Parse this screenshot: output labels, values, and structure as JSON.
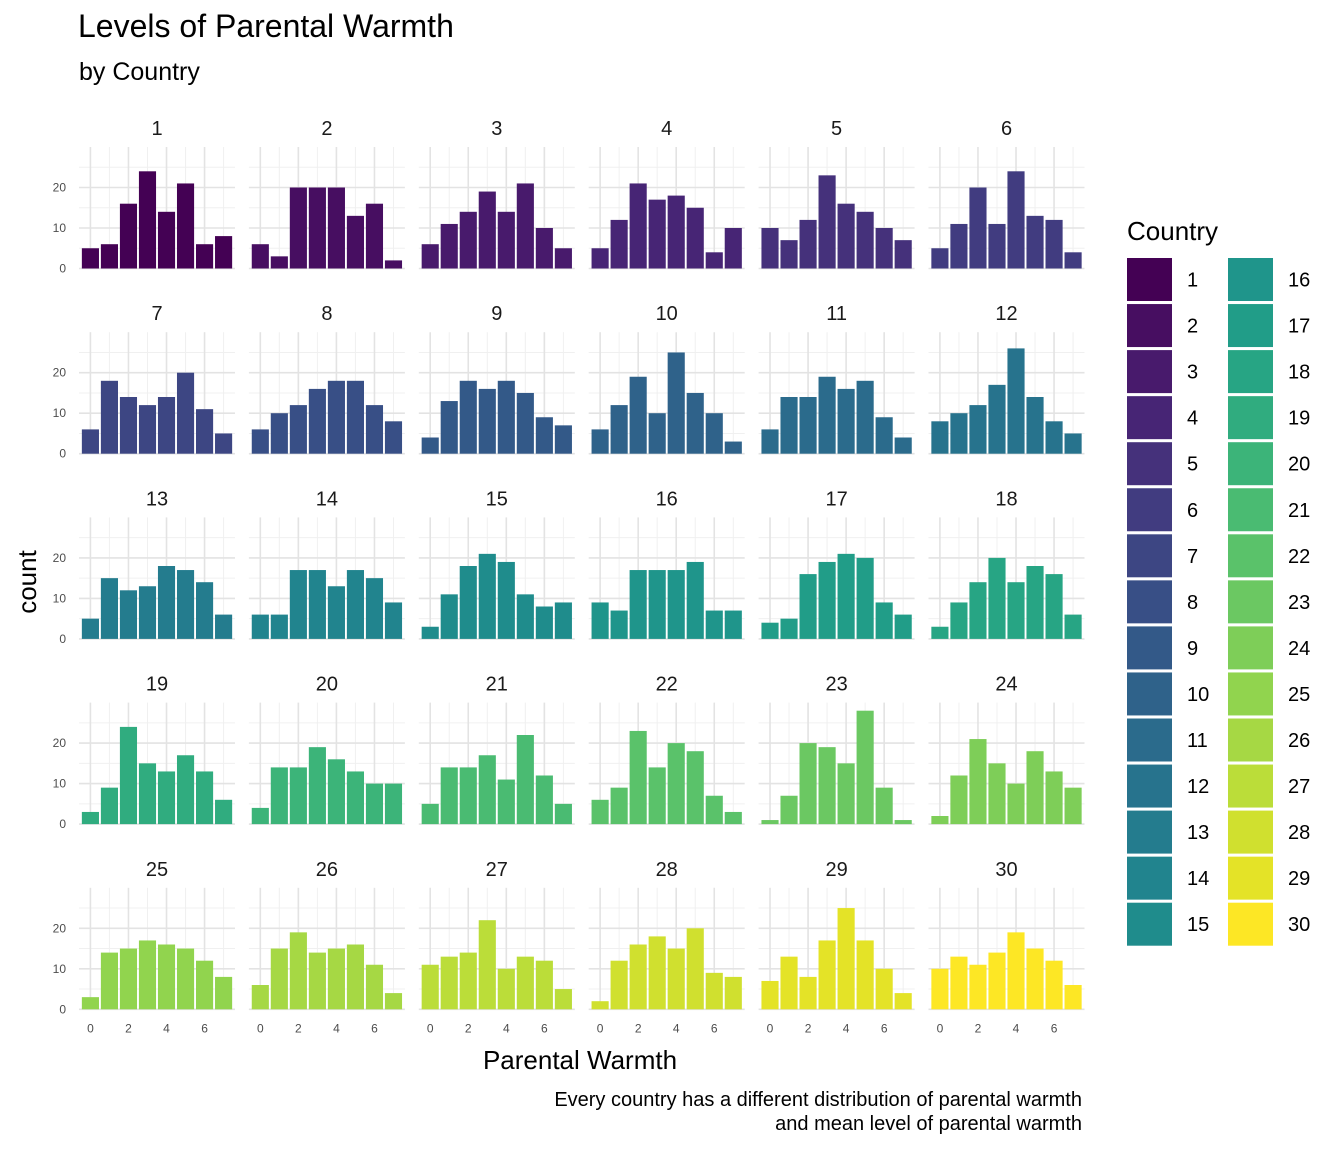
{
  "chart_data": {
    "type": "bar",
    "title": "Levels of Parental Warmth",
    "subtitle": "by Country",
    "xlabel": "Parental Warmth",
    "ylabel": "count",
    "caption": "Every country has a different distribution of parental warmth\nand mean level of parental warmth",
    "legend_title": "Country",
    "legend_position": "right",
    "grid": true,
    "x": [
      0,
      1,
      2,
      3,
      4,
      5,
      6,
      7
    ],
    "xlim": [
      -0.6,
      7.6
    ],
    "ylim": [
      0,
      30
    ],
    "x_ticks": [
      "0",
      "2",
      "4",
      "6"
    ],
    "y_ticks": [
      "0",
      "10",
      "20"
    ],
    "facets": [
      {
        "label": "1",
        "values": [
          5,
          6,
          16,
          24,
          14,
          21,
          6,
          8
        ],
        "color": "#440154"
      },
      {
        "label": "2",
        "values": [
          6,
          3,
          20,
          20,
          20,
          13,
          16,
          2
        ],
        "color": "#470E61"
      },
      {
        "label": "3",
        "values": [
          6,
          11,
          14,
          19,
          14,
          21,
          10,
          5
        ],
        "color": "#481A6C"
      },
      {
        "label": "4",
        "values": [
          5,
          12,
          21,
          17,
          18,
          15,
          4,
          10
        ],
        "color": "#472575"
      },
      {
        "label": "5",
        "values": [
          10,
          7,
          12,
          23,
          16,
          14,
          10,
          7
        ],
        "color": "#45317B"
      },
      {
        "label": "6",
        "values": [
          5,
          11,
          20,
          11,
          24,
          13,
          12,
          4
        ],
        "color": "#413C80"
      },
      {
        "label": "7",
        "values": [
          6,
          18,
          14,
          12,
          14,
          20,
          11,
          5
        ],
        "color": "#3D4683"
      },
      {
        "label": "8",
        "values": [
          6,
          10,
          12,
          16,
          18,
          18,
          12,
          8
        ],
        "color": "#384F86"
      },
      {
        "label": "9",
        "values": [
          4,
          13,
          18,
          16,
          18,
          15,
          9,
          7
        ],
        "color": "#335988"
      },
      {
        "label": "10",
        "values": [
          6,
          12,
          19,
          10,
          25,
          15,
          10,
          3
        ],
        "color": "#2F628A"
      },
      {
        "label": "11",
        "values": [
          6,
          14,
          14,
          19,
          16,
          18,
          9,
          4
        ],
        "color": "#2B6B8C"
      },
      {
        "label": "12",
        "values": [
          8,
          10,
          12,
          17,
          26,
          14,
          8,
          5
        ],
        "color": "#27738D"
      },
      {
        "label": "13",
        "values": [
          5,
          15,
          12,
          13,
          18,
          17,
          14,
          6
        ],
        "color": "#247C8E"
      },
      {
        "label": "14",
        "values": [
          6,
          6,
          17,
          17,
          13,
          17,
          15,
          9
        ],
        "color": "#21848E"
      },
      {
        "label": "15",
        "values": [
          3,
          11,
          18,
          21,
          19,
          11,
          8,
          9
        ],
        "color": "#1F8C8C"
      },
      {
        "label": "16",
        "values": [
          9,
          7,
          17,
          17,
          17,
          19,
          7,
          7
        ],
        "color": "#1F958B"
      },
      {
        "label": "17",
        "values": [
          4,
          5,
          16,
          19,
          21,
          20,
          9,
          6
        ],
        "color": "#219D88"
      },
      {
        "label": "18",
        "values": [
          3,
          9,
          14,
          20,
          14,
          18,
          16,
          6
        ],
        "color": "#27A584"
      },
      {
        "label": "19",
        "values": [
          3,
          9,
          24,
          15,
          13,
          17,
          13,
          6
        ],
        "color": "#30AC7F"
      },
      {
        "label": "20",
        "values": [
          4,
          14,
          14,
          19,
          16,
          13,
          10,
          10
        ],
        "color": "#3CB479"
      },
      {
        "label": "21",
        "values": [
          5,
          14,
          14,
          17,
          11,
          22,
          12,
          5
        ],
        "color": "#4ABB72"
      },
      {
        "label": "22",
        "values": [
          6,
          9,
          23,
          14,
          20,
          18,
          7,
          3
        ],
        "color": "#5AC26A"
      },
      {
        "label": "23",
        "values": [
          1,
          7,
          20,
          19,
          15,
          28,
          9,
          1
        ],
        "color": "#6BC862"
      },
      {
        "label": "24",
        "values": [
          2,
          12,
          21,
          15,
          10,
          18,
          13,
          9
        ],
        "color": "#7ECE58"
      },
      {
        "label": "25",
        "values": [
          3,
          14,
          15,
          17,
          16,
          15,
          12,
          8
        ],
        "color": "#91D44E"
      },
      {
        "label": "26",
        "values": [
          6,
          15,
          19,
          14,
          15,
          16,
          11,
          4
        ],
        "color": "#A6D844"
      },
      {
        "label": "27",
        "values": [
          11,
          13,
          14,
          22,
          10,
          13,
          12,
          5
        ],
        "color": "#BBDD39"
      },
      {
        "label": "28",
        "values": [
          2,
          12,
          16,
          18,
          15,
          20,
          9,
          8
        ],
        "color": "#D0E02F"
      },
      {
        "label": "29",
        "values": [
          7,
          13,
          8,
          17,
          25,
          17,
          10,
          4
        ],
        "color": "#E4E327"
      },
      {
        "label": "30",
        "values": [
          10,
          13,
          11,
          14,
          19,
          15,
          12,
          6
        ],
        "color": "#FDE725"
      }
    ]
  }
}
